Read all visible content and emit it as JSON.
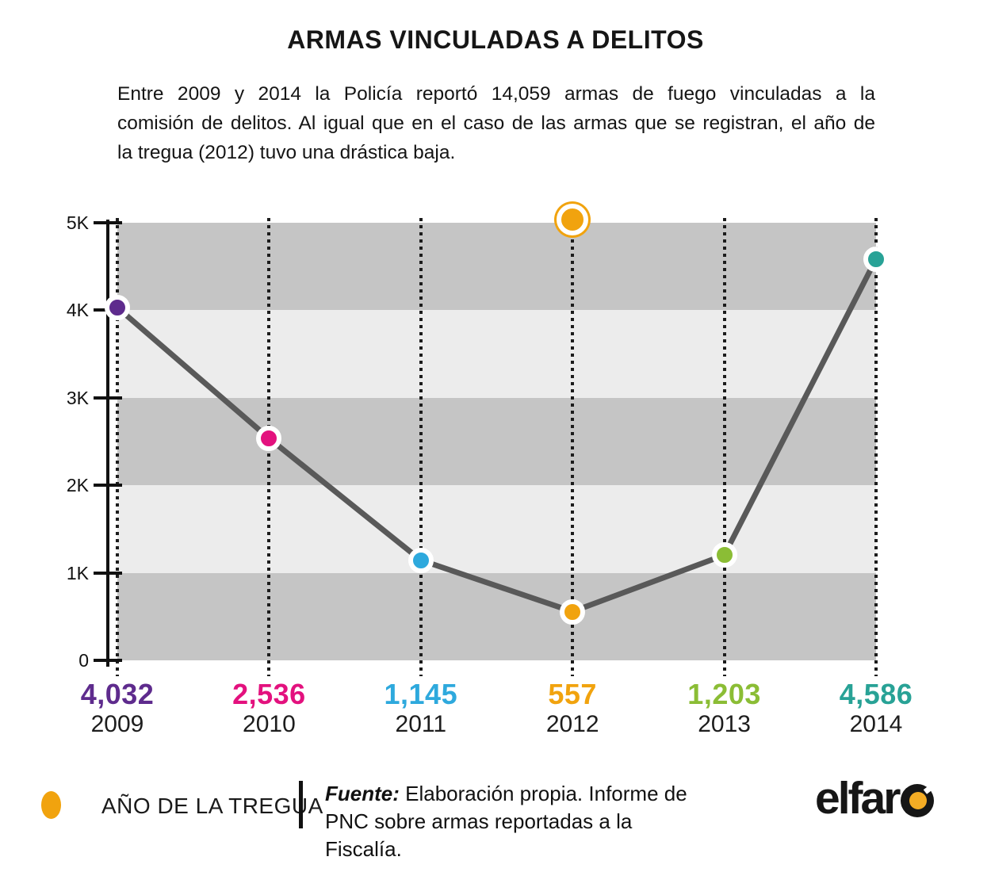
{
  "header": {
    "title": "ARMAS VINCULADAS A DELITOS",
    "description_lines": [
      "Entre 2009 y 2014 la Policía reportó 14,059 armas de fuego vinculadas a la",
      "comisión de delitos. Al igual que en el caso de las armas que se registran, el año de",
      "la tregua (2012) tuvo una drástica baja."
    ]
  },
  "chart_data": {
    "type": "line",
    "title": "ARMAS VINCULADAS A DELITOS",
    "categories": [
      "2009",
      "2010",
      "2011",
      "2012",
      "2013",
      "2014"
    ],
    "values": [
      4032,
      2536,
      1145,
      557,
      1203,
      4586
    ],
    "value_labels": [
      "4,032",
      "2,536",
      "1,145",
      "557",
      "1,203",
      "4,586"
    ],
    "point_colors": [
      "#5E2B8D",
      "#E3117E",
      "#2EA9DD",
      "#F1A30E",
      "#8BBD35",
      "#28A296"
    ],
    "highlight_category": "2012",
    "highlight_color": "#F1A30E",
    "ylim": [
      0,
      5000
    ],
    "ytick_values": [
      5000,
      4000,
      3000,
      2000,
      1000,
      0
    ],
    "ytick_labels": [
      "5K",
      "4K",
      "3K",
      "2K",
      "1K",
      "0"
    ],
    "band_colors": [
      "#C5C5C5",
      "#ECECEC"
    ],
    "line_color": "#595959",
    "grid_color": "#1C1C1C",
    "grid": "vertical-dotted",
    "xlabel": "",
    "ylabel": ""
  },
  "legend": {
    "truce_label": "AÑO DE LA TREGUA",
    "truce_color": "#F1A30E"
  },
  "source": {
    "prefix": "Fuente:",
    "line1": "Elaboración propia. Informe de PNC",
    "line2": "sobre armas reportadas a la Fiscalía."
  },
  "logo": {
    "text": "elfar",
    "dot_color": "#F4AC24"
  }
}
